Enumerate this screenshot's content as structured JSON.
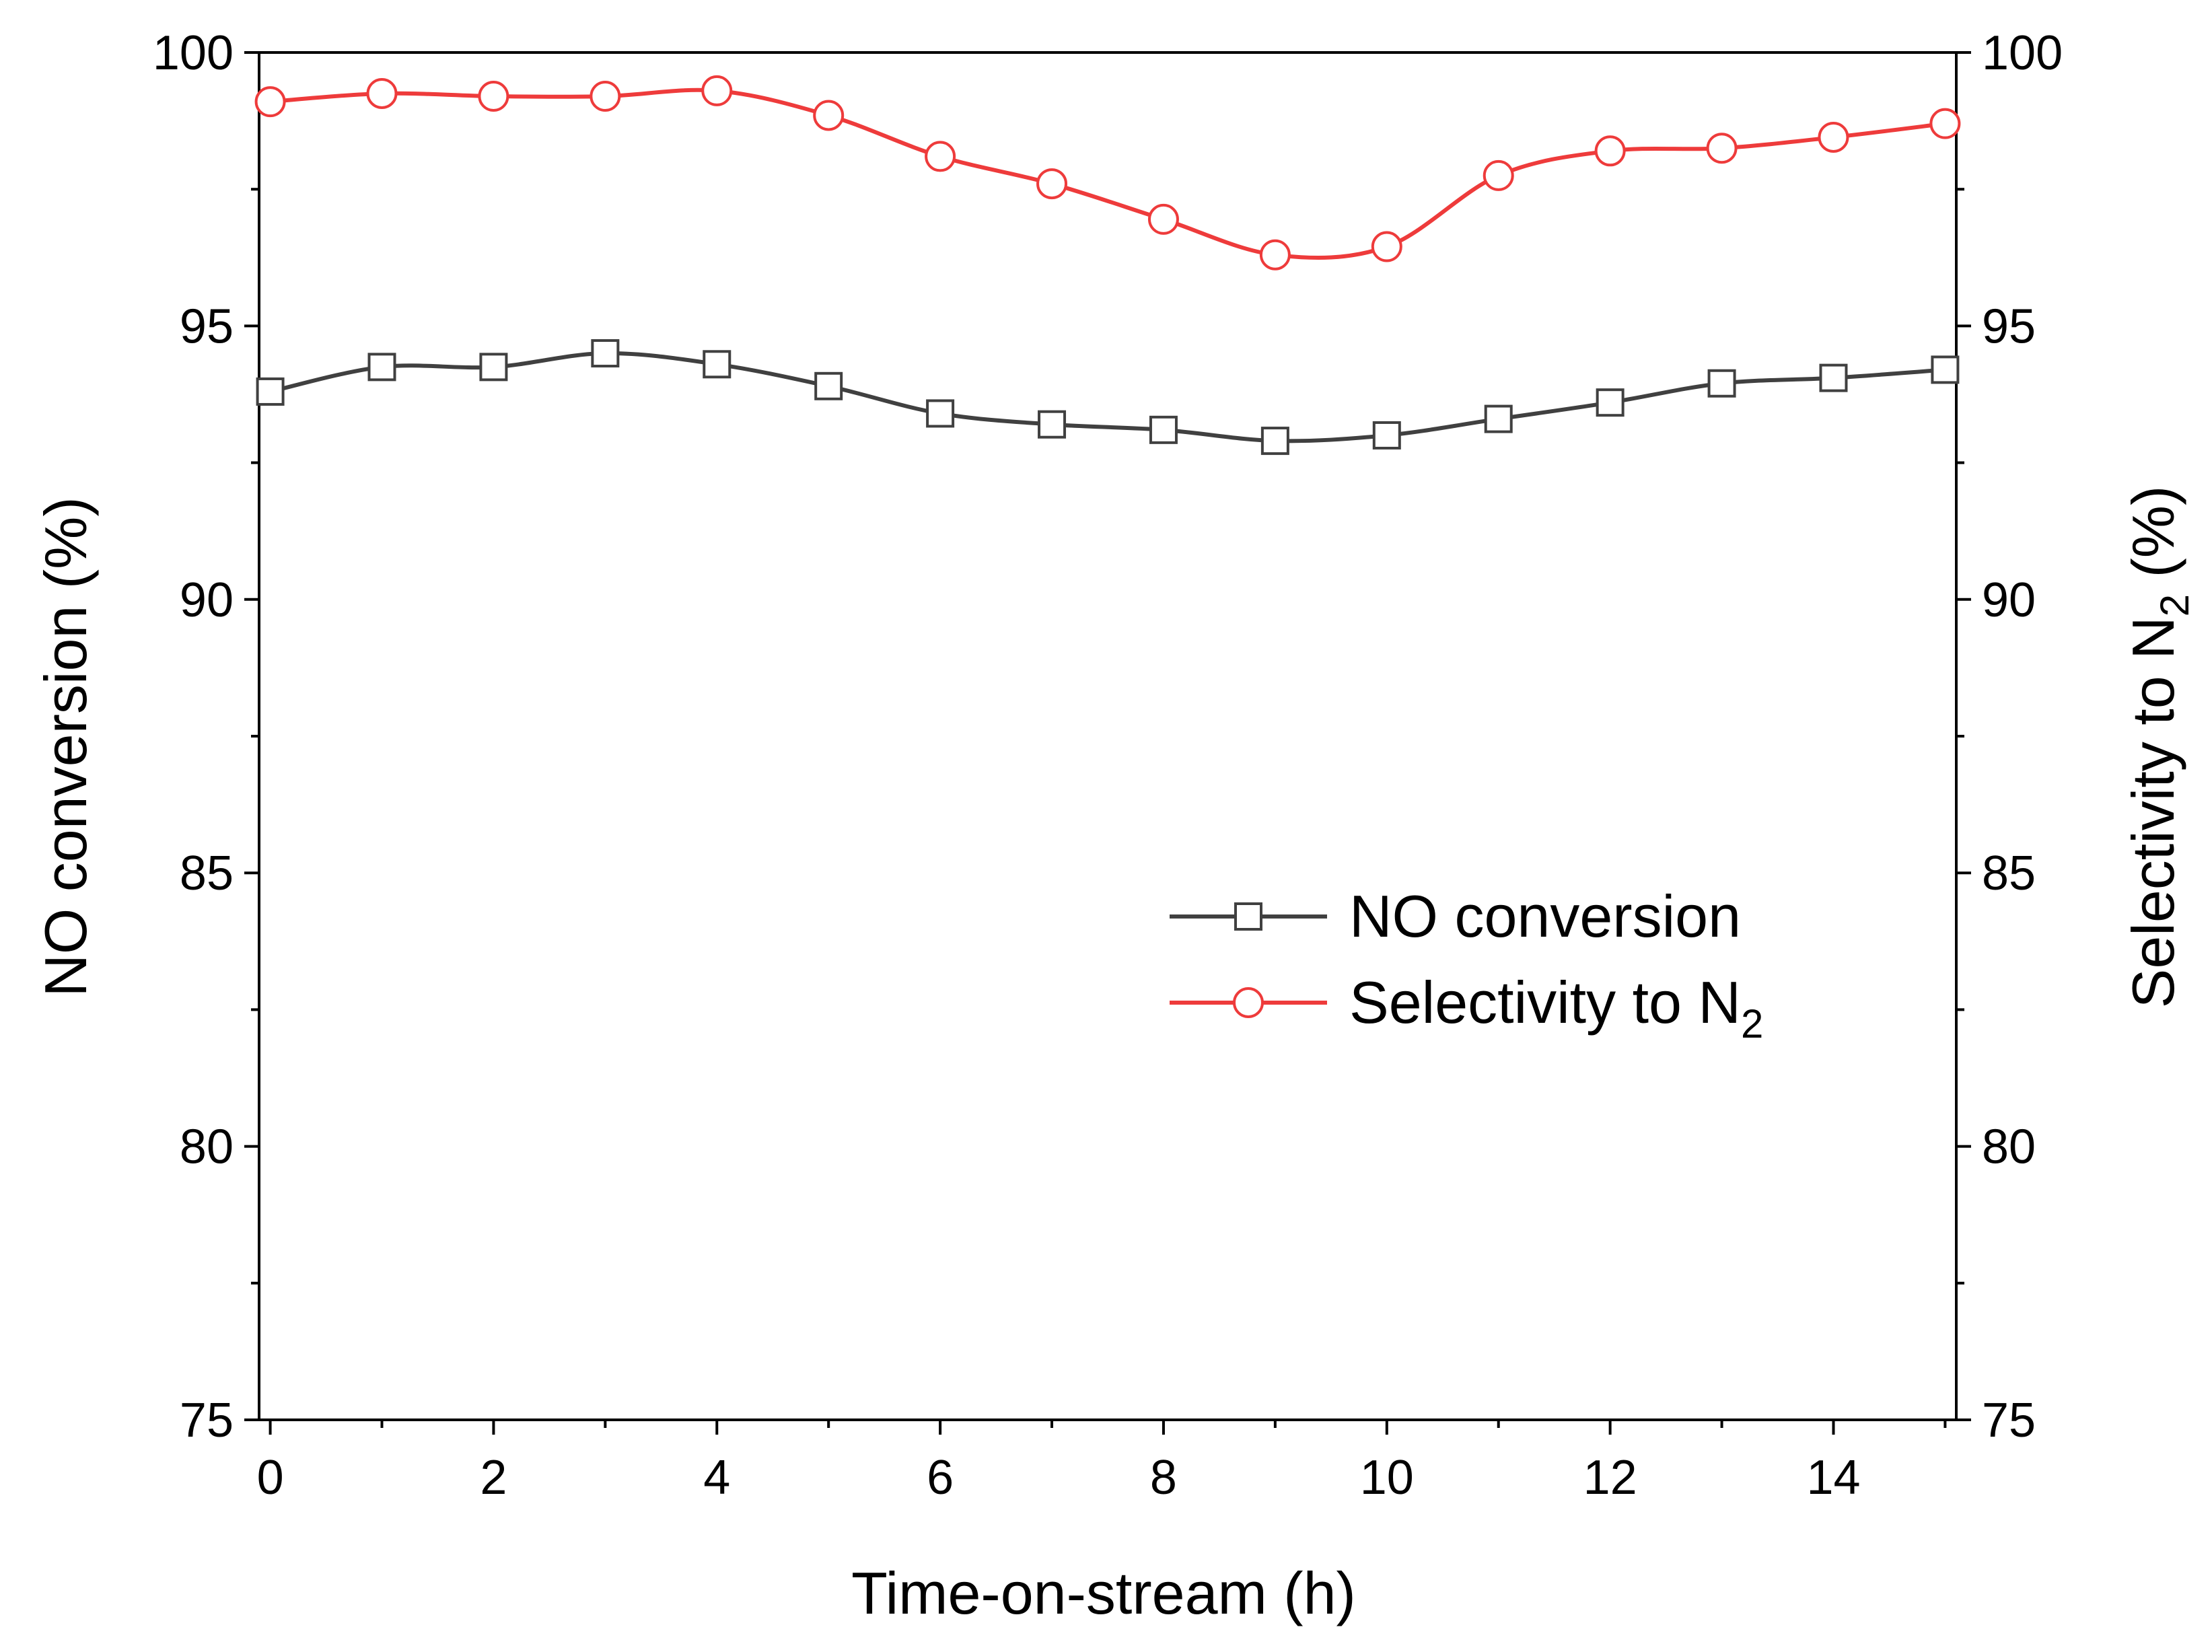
{
  "chart_data": {
    "type": "line",
    "xlabel": "Time-on-stream (h)",
    "ylabel_left": "NO conversion (%)",
    "ylabel_right": {
      "main": "Selectivity to N",
      "subscript": "2",
      "suffix": " (%)"
    },
    "xlim": [
      -0.1,
      15.1
    ],
    "ylim": [
      75,
      100
    ],
    "x_ticks": [
      0,
      2,
      4,
      6,
      8,
      10,
      12,
      14
    ],
    "x_tick_labels": [
      "0",
      "2",
      "4",
      "6",
      "8",
      "10",
      "12",
      "14"
    ],
    "x_minor_ticks": [
      1,
      3,
      5,
      7,
      9,
      11,
      13,
      15
    ],
    "y_ticks": [
      75,
      80,
      85,
      90,
      95,
      100
    ],
    "y_tick_labels": [
      "75",
      "80",
      "85",
      "90",
      "95",
      "100"
    ],
    "y_minor_ticks": [
      77.5,
      82.5,
      87.5,
      92.5,
      97.5
    ],
    "x": [
      0,
      1,
      2,
      3,
      4,
      5,
      6,
      7,
      8,
      9,
      10,
      11,
      12,
      13,
      14,
      15
    ],
    "series": [
      {
        "name": "NO conversion",
        "marker": "square",
        "color": "#404040",
        "values": [
          93.8,
          94.25,
          94.25,
          94.5,
          94.3,
          93.9,
          93.4,
          93.2,
          93.1,
          92.9,
          93.0,
          93.3,
          93.6,
          93.95,
          94.05,
          94.2
        ]
      },
      {
        "name": "Selectivity to N",
        "name_subscript": "2",
        "marker": "circle",
        "color": "#ee3b3b",
        "values": [
          99.1,
          99.25,
          99.2,
          99.2,
          99.3,
          98.85,
          98.1,
          97.6,
          96.95,
          96.3,
          96.45,
          97.75,
          98.2,
          98.25,
          98.45,
          98.7
        ]
      }
    ],
    "legend": {
      "position": "center-right"
    }
  }
}
